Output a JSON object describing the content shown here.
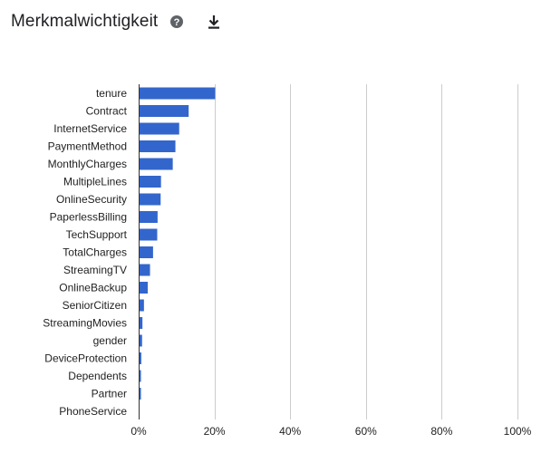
{
  "header": {
    "title": "Merkmalwichtigkeit",
    "help_icon": "help-circle-icon",
    "download_icon": "download-icon"
  },
  "colors": {
    "bar": "#3366cc",
    "grid": "#cccccc",
    "text": "#222222"
  },
  "chart_data": {
    "type": "bar",
    "orientation": "horizontal",
    "title": "",
    "xlabel": "",
    "ylabel": "",
    "xlim": [
      0,
      100
    ],
    "x_ticks": [
      "0%",
      "20%",
      "40%",
      "60%",
      "80%",
      "100%"
    ],
    "x_tick_values": [
      0,
      20,
      40,
      60,
      80,
      100
    ],
    "grid": true,
    "categories": [
      "tenure",
      "Contract",
      "InternetService",
      "PaymentMethod",
      "MonthlyCharges",
      "MultipleLines",
      "OnlineSecurity",
      "PaperlessBilling",
      "TechSupport",
      "TotalCharges",
      "StreamingTV",
      "OnlineBackup",
      "SeniorCitizen",
      "StreamingMovies",
      "gender",
      "DeviceProtection",
      "Dependents",
      "Partner",
      "PhoneService"
    ],
    "values": [
      20.2,
      13.2,
      10.7,
      9.7,
      9.0,
      5.9,
      5.8,
      5.0,
      4.9,
      3.8,
      3.0,
      2.4,
      1.4,
      1.0,
      0.9,
      0.7,
      0.6,
      0.6,
      0.2
    ]
  }
}
